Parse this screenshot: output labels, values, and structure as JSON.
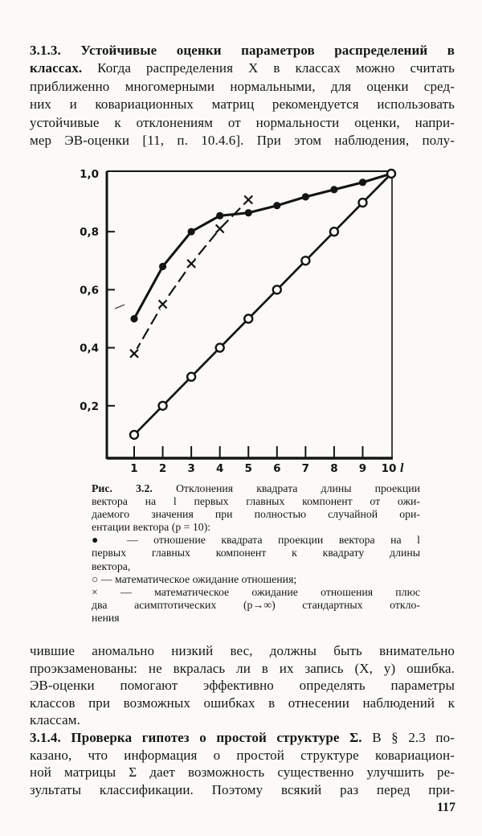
{
  "page_number": "117",
  "section_313": {
    "lines": [
      {
        "b": "3.1.3. Устойчивые  оценки  параметров  распределений  в",
        "r": "",
        "j": true
      },
      {
        "b": "классах.",
        "r": " Когда распределения X в классах можно считать",
        "j": true
      },
      {
        "b": "",
        "r": "приближенно многомерными нормальными, для оценки сред-",
        "j": true
      },
      {
        "b": "",
        "r": "них и ковариационных матриц рекомендуется использовать",
        "j": true
      },
      {
        "b": "",
        "r": "устойчивые к отклонениям от нормальности оценки, напри-",
        "j": true
      },
      {
        "b": "",
        "r": "мер ЭВ-оценки [11, п. 10.4.6]. При этом наблюдения, полу-",
        "j": true
      }
    ]
  },
  "figure_caption": {
    "lines": [
      {
        "b": "Рис. 3.2.",
        "r": " Отклонения квадрата  длины проекции",
        "j": true
      },
      {
        "b": "",
        "r": "вектора на l первых главных компонент от ожи-",
        "j": true
      },
      {
        "b": "",
        "r": "даемого значения при полностью случайной ори-",
        "j": true
      },
      {
        "b": "",
        "r": "ентации вектора (p = 10):",
        "j": false
      },
      {
        "b": "",
        "r": "● — отношение квадрата проекции вектора на l",
        "j": true
      },
      {
        "b": "",
        "r": "первых  главных  компонент к квадрату  длины",
        "j": true
      },
      {
        "b": "",
        "r": "вектора,",
        "j": false
      },
      {
        "b": "",
        "r": "○ — математическое ожидание отношения;",
        "j": false
      },
      {
        "b": "",
        "r": "× — математическое ожидание отношения  плюс",
        "j": true
      },
      {
        "b": "",
        "r": "два асимптотических (p→∞) стандартных откло-",
        "j": true
      },
      {
        "b": "",
        "r": "нения",
        "j": false
      }
    ]
  },
  "body_after_figure": {
    "lines": [
      {
        "b": "",
        "r": "чившие аномально низкий вес, должны быть внимательно",
        "j": true
      },
      {
        "b": "",
        "r": "проэкзаменованы: не вкралась ли в их запись (X, y) ошибка.",
        "j": true
      },
      {
        "b": "",
        "r": "ЭВ-оценки помогают эффективно определять параметры",
        "j": true
      },
      {
        "b": "",
        "r": "классов при возможных ошибках в отнесении наблюдений к",
        "j": true
      },
      {
        "b": "",
        "r": "классам.",
        "j": false
      },
      {
        "b": "3.1.4. Проверка  гипотез о простой структуре Σ.",
        "r": " В § 2.3 по-",
        "j": true
      },
      {
        "b": "",
        "r": "казано, что информация о простой структуре ковариацион-",
        "j": true
      },
      {
        "b": "",
        "r": "ной матрицы Σ дает возможность существенно улучшить ре-",
        "j": true
      },
      {
        "b": "",
        "r": "зультаты классификации. Поэтому всякий раз перед при-",
        "j": true
      }
    ]
  },
  "chart_data": {
    "type": "line",
    "title": "Рис. 3.2. Отклонения квадрата длины проекции вектора на l первых главных компонент от ожидаемого значения при полностью случайной ориентации вектора (p = 10)",
    "xlabel": "l",
    "ylabel": "",
    "x": [
      1,
      2,
      3,
      4,
      5,
      6,
      7,
      8,
      9,
      10
    ],
    "xlim": [
      0,
      10
    ],
    "ylim": [
      0,
      1.0
    ],
    "grid": false,
    "legend_position": "caption-below",
    "x_axis": {
      "ticks": [
        1,
        2,
        3,
        4,
        5,
        6,
        7,
        8,
        9,
        10
      ],
      "label": "l"
    },
    "y_axis": {
      "ticks": [
        0.2,
        0.4,
        0.6,
        0.8,
        1.0
      ],
      "tick_labels": [
        "0,2",
        "0,4",
        "0,6",
        "0,8",
        "1,0"
      ],
      "decimal_comma": true
    },
    "series": [
      {
        "name": "отношение квадрата проекции вектора на l первых главных компонент к квадрату длины вектора",
        "marker": "filled-circle",
        "line": "solid",
        "values": [
          0.5,
          0.68,
          0.8,
          0.855,
          0.865,
          0.89,
          0.92,
          0.945,
          0.97,
          1.0
        ]
      },
      {
        "name": "математическое ожидание отношения",
        "marker": "open-circle",
        "line": "solid",
        "values": [
          0.1,
          0.2,
          0.3,
          0.4,
          0.5,
          0.6,
          0.7,
          0.8,
          0.9,
          1.0
        ]
      },
      {
        "name": "математическое ожидание отношения плюс два асимптотических (p→∞) стандартных отклонения",
        "marker": "cross",
        "line": "dashed",
        "values": [
          0.38,
          0.55,
          0.69,
          0.81,
          0.91
        ]
      }
    ],
    "ink_color": "#141414"
  }
}
